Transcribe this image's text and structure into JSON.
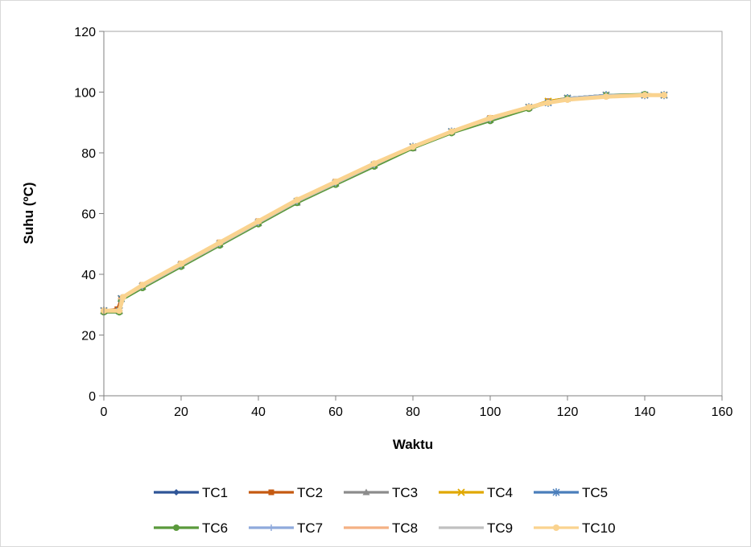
{
  "chart_data": {
    "type": "line",
    "title": "",
    "xlabel": "Waktu",
    "ylabel": "Suhu (ºC)",
    "xlim": [
      0,
      160
    ],
    "ylim": [
      0,
      120
    ],
    "xticks": [
      0,
      20,
      40,
      60,
      80,
      100,
      120,
      140,
      160
    ],
    "yticks": [
      0,
      20,
      40,
      60,
      80,
      100,
      120
    ],
    "grid": false,
    "legend": "bottom",
    "series": [
      {
        "name": "TC1",
        "color": "#2f5597",
        "marker": "diamond",
        "x": [
          0,
          4,
          4.5,
          10,
          20,
          30,
          40,
          50,
          60,
          70,
          80,
          90,
          100,
          110,
          115,
          120,
          130,
          140,
          145
        ],
        "y": [
          28,
          28,
          32,
          36,
          43,
          50,
          57,
          64,
          70,
          76,
          82,
          87,
          91,
          95,
          96.5,
          98,
          99,
          99,
          99
        ]
      },
      {
        "name": "TC2",
        "color": "#c55a11",
        "marker": "square",
        "x": [
          0,
          3.5,
          4.5,
          10,
          20,
          30,
          40,
          50,
          60,
          70,
          80,
          90,
          100,
          110,
          115,
          120,
          130,
          140,
          145
        ],
        "y": [
          28,
          28.5,
          32,
          36.5,
          43.5,
          50.5,
          57.5,
          64,
          70.5,
          76,
          82,
          87,
          91.5,
          95,
          97,
          98,
          99,
          99.2,
          99
        ]
      },
      {
        "name": "TC3",
        "color": "#8c8c8c",
        "marker": "triangle",
        "x": [
          0,
          4,
          4.5,
          10,
          20,
          30,
          40,
          50,
          60,
          70,
          80,
          90,
          100,
          110,
          115,
          120,
          130,
          140,
          145
        ],
        "y": [
          28,
          28,
          32,
          36,
          43,
          50,
          57,
          63.5,
          70,
          76,
          81.5,
          87,
          91,
          95,
          96.5,
          98,
          99,
          99,
          99
        ]
      },
      {
        "name": "TC4",
        "color": "#e0a800",
        "marker": "x",
        "x": [
          0,
          4,
          4.5,
          10,
          20,
          30,
          40,
          50,
          60,
          70,
          80,
          90,
          100,
          110,
          115,
          120,
          130,
          140,
          145
        ],
        "y": [
          28,
          28,
          32,
          36,
          43,
          50,
          57,
          64,
          70,
          76,
          82,
          87,
          91,
          95,
          97,
          98,
          99,
          99,
          99
        ]
      },
      {
        "name": "TC5",
        "color": "#4a7ebb",
        "marker": "star",
        "x": [
          0,
          4,
          4.5,
          10,
          20,
          30,
          40,
          50,
          60,
          70,
          80,
          90,
          100,
          110,
          115,
          120,
          130,
          140,
          145
        ],
        "y": [
          28,
          28,
          32,
          36,
          43,
          50,
          57,
          64,
          70,
          76,
          82,
          87,
          91,
          95,
          96.5,
          98,
          99,
          99,
          99
        ]
      },
      {
        "name": "TC6",
        "color": "#5b9a3c",
        "marker": "circle",
        "x": [
          0,
          4,
          4.5,
          10,
          20,
          30,
          40,
          50,
          60,
          70,
          80,
          90,
          100,
          110,
          115,
          120,
          130,
          140,
          145
        ],
        "y": [
          27.5,
          27.5,
          31.5,
          35.5,
          42.5,
          49.5,
          56.5,
          63.5,
          69.5,
          75.5,
          81.5,
          86.5,
          90.5,
          94.5,
          96.5,
          98,
          99,
          99.3,
          99
        ]
      },
      {
        "name": "TC7",
        "color": "#8faadc",
        "marker": "plus",
        "x": [
          0,
          4,
          4.5,
          10,
          20,
          30,
          40,
          50,
          60,
          70,
          80,
          90,
          100,
          110,
          115,
          120,
          130,
          140,
          145
        ],
        "y": [
          28,
          28,
          32,
          36,
          43,
          50,
          57,
          64,
          70,
          76,
          82,
          87,
          91,
          95,
          96.5,
          98,
          99,
          99,
          99
        ]
      },
      {
        "name": "TC8",
        "color": "#f4b183",
        "marker": "dash",
        "x": [
          0,
          4,
          4.5,
          10,
          20,
          30,
          40,
          50,
          60,
          70,
          80,
          90,
          100,
          110,
          115,
          120,
          130,
          140,
          145
        ],
        "y": [
          28,
          28,
          32,
          36,
          43,
          50,
          57,
          64,
          70,
          76,
          82,
          87,
          91,
          95,
          96.5,
          97.5,
          98.5,
          99,
          99
        ]
      },
      {
        "name": "TC9",
        "color": "#c0c0c0",
        "marker": "none",
        "x": [
          0,
          4,
          4.5,
          10,
          20,
          30,
          40,
          50,
          60,
          70,
          80,
          90,
          100,
          110,
          115,
          120,
          130,
          140,
          145
        ],
        "y": [
          28,
          28,
          32,
          36,
          43,
          50,
          57,
          64,
          70,
          76,
          82,
          87,
          91,
          95,
          96.5,
          97.5,
          98.5,
          99,
          99
        ]
      },
      {
        "name": "TC10",
        "color": "#fad38f",
        "marker": "circle",
        "x": [
          0,
          4,
          5,
          10,
          20,
          30,
          40,
          50,
          60,
          70,
          80,
          90,
          100,
          110,
          115,
          120,
          130,
          140,
          145
        ],
        "y": [
          28,
          28,
          32.5,
          36.5,
          43.5,
          50.5,
          57.5,
          64.5,
          70.5,
          76.5,
          82,
          87,
          91.5,
          95,
          96.5,
          97.5,
          98.5,
          99,
          99
        ]
      }
    ]
  }
}
